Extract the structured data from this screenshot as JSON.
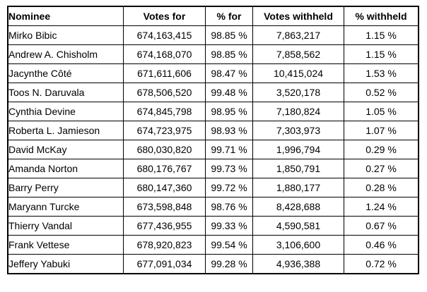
{
  "colors": {
    "background": "#ffffff",
    "text": "#000000",
    "border": "#000000"
  },
  "table": {
    "columns": [
      {
        "key": "nominee",
        "label": "Nominee",
        "align": "left"
      },
      {
        "key": "votes_for",
        "label": "Votes for",
        "align": "center"
      },
      {
        "key": "pct_for",
        "label": "% for",
        "align": "center"
      },
      {
        "key": "votes_withheld",
        "label": "Votes withheld",
        "align": "center"
      },
      {
        "key": "pct_withheld",
        "label": "% withheld",
        "align": "center"
      }
    ],
    "rows": [
      [
        "Mirko Bibic",
        "674,163,415",
        "98.85 %",
        "7,863,217",
        "1.15 %"
      ],
      [
        "Andrew A. Chisholm",
        "674,168,070",
        "98.85 %",
        "7,858,562",
        "1.15 %"
      ],
      [
        "Jacynthe Côté",
        "671,611,606",
        "98.47 %",
        "10,415,024",
        "1.53 %"
      ],
      [
        "Toos N. Daruvala",
        "678,506,520",
        "99.48 %",
        "3,520,178",
        "0.52 %"
      ],
      [
        "Cynthia Devine",
        "674,845,798",
        "98.95 %",
        "7,180,824",
        "1.05 %"
      ],
      [
        "Roberta L. Jamieson",
        "674,723,975",
        "98.93 %",
        "7,303,973",
        "1.07 %"
      ],
      [
        "David McKay",
        "680,030,820",
        "99.71 %",
        "1,996,794",
        "0.29 %"
      ],
      [
        "Amanda Norton",
        "680,176,767",
        "99.73 %",
        "1,850,791",
        "0.27 %"
      ],
      [
        "Barry Perry",
        "680,147,360",
        "99.72 %",
        "1,880,177",
        "0.28 %"
      ],
      [
        "Maryann Turcke",
        "673,598,848",
        "98.76 %",
        "8,428,688",
        "1.24 %"
      ],
      [
        "Thierry Vandal",
        "677,436,955",
        "99.33 %",
        "4,590,581",
        "0.67 %"
      ],
      [
        "Frank Vettese",
        "678,920,823",
        "99.54 %",
        "3,106,600",
        "0.46 %"
      ],
      [
        "Jeffery Yabuki",
        "677,091,034",
        "99.28 %",
        "4,936,388",
        "0.72 %"
      ]
    ]
  }
}
